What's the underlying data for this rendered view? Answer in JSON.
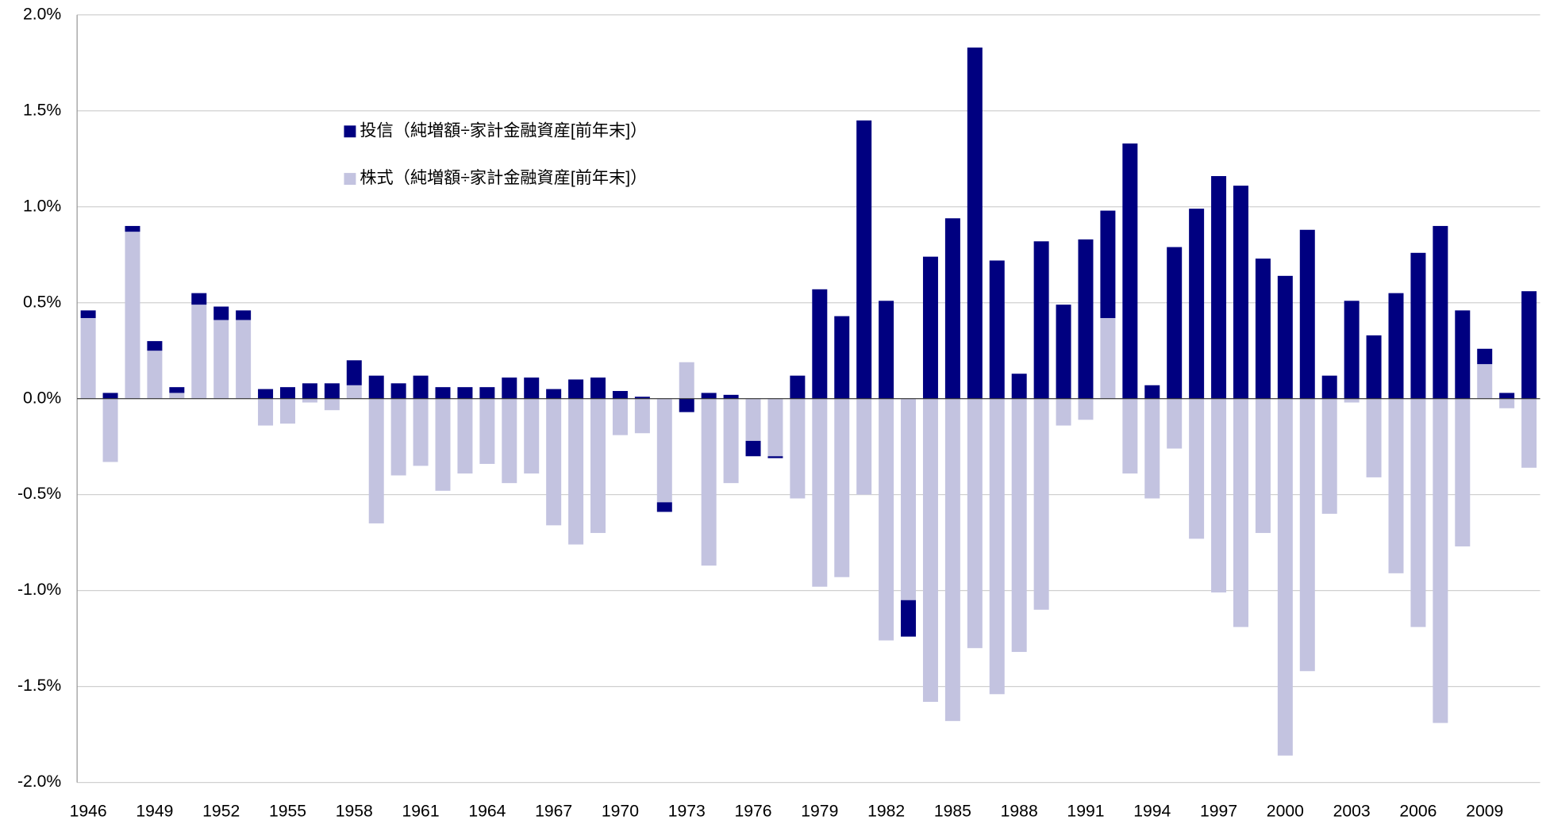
{
  "chart_data": {
    "type": "bar",
    "stacked": true,
    "categories": [
      "1946",
      null,
      null,
      "1949",
      null,
      null,
      "1952",
      null,
      null,
      "1955",
      null,
      null,
      "1958",
      null,
      null,
      "1961",
      null,
      null,
      "1964",
      null,
      null,
      "1967",
      null,
      null,
      "1970",
      null,
      null,
      "1973",
      null,
      null,
      "1976",
      null,
      null,
      "1979",
      null,
      null,
      "1982",
      null,
      null,
      "1985",
      null,
      null,
      "1988",
      null,
      null,
      "1991",
      null,
      null,
      "1994",
      null,
      null,
      "1997",
      null,
      null,
      "2000",
      null,
      null,
      "2003",
      null,
      null,
      "2006",
      null,
      null,
      "2009",
      null,
      null
    ],
    "series": [
      {
        "name": "投信（純増額÷家計金融資産[前年末]）",
        "color": "#000080",
        "values": [
          0.04,
          0.03,
          0.03,
          0.05,
          0.03,
          0.06,
          0.07,
          0.05,
          0.05,
          0.06,
          0.08,
          0.08,
          0.13,
          0.12,
          0.08,
          0.12,
          0.06,
          0.06,
          0.06,
          0.11,
          0.11,
          0.05,
          0.1,
          0.11,
          0.04,
          0.01,
          -0.05,
          -0.07,
          0.03,
          0.02,
          -0.08,
          -0.01,
          0.12,
          0.57,
          0.43,
          1.45,
          0.51,
          -0.19,
          0.74,
          0.94,
          1.83,
          0.72,
          0.13,
          0.82,
          0.49,
          0.83,
          0.56,
          1.33,
          0.07,
          0.79,
          0.99,
          1.16,
          1.11,
          0.73,
          0.64,
          0.88,
          0.12,
          0.51,
          0.33,
          0.55,
          0.76,
          0.9,
          0.46,
          0.08,
          0.03,
          0.56
        ]
      },
      {
        "name": "株式（純増額÷家計金融資産[前年末]）",
        "color": "#c3c3e0",
        "values": [
          0.42,
          -0.33,
          0.87,
          0.25,
          0.03,
          0.49,
          0.41,
          0.41,
          -0.14,
          -0.13,
          -0.02,
          -0.06,
          0.07,
          -0.65,
          -0.4,
          -0.35,
          -0.48,
          -0.39,
          -0.34,
          -0.44,
          -0.39,
          -0.66,
          -0.76,
          -0.7,
          -0.19,
          -0.18,
          -0.54,
          0.19,
          -0.87,
          -0.44,
          -0.22,
          -0.3,
          -0.52,
          -0.98,
          -0.93,
          -0.5,
          -1.26,
          -1.05,
          -1.58,
          -1.68,
          -1.3,
          -1.54,
          -1.32,
          -1.1,
          -0.14,
          -0.11,
          0.42,
          -0.39,
          -0.52,
          -0.26,
          -0.73,
          -1.01,
          -1.19,
          -0.7,
          -1.86,
          -1.42,
          -0.6,
          -0.02,
          -0.41,
          -0.91,
          -1.19,
          -1.69,
          -0.77,
          0.18,
          -0.05,
          -0.36
        ]
      }
    ],
    "ylim": [
      -2,
      2
    ],
    "yticks": [
      {
        "value": -2,
        "label": "-2.0%"
      },
      {
        "value": -1.5,
        "label": "-1.5%"
      },
      {
        "value": -1,
        "label": "-1.0%"
      },
      {
        "value": -0.5,
        "label": "-0.5%"
      },
      {
        "value": 0,
        "label": "0.0%"
      },
      {
        "value": 0.5,
        "label": "0.5%"
      },
      {
        "value": 1,
        "label": "1.0%"
      },
      {
        "value": 1.5,
        "label": "1.5%"
      },
      {
        "value": 2,
        "label": "2.0%"
      }
    ],
    "grid": true
  }
}
